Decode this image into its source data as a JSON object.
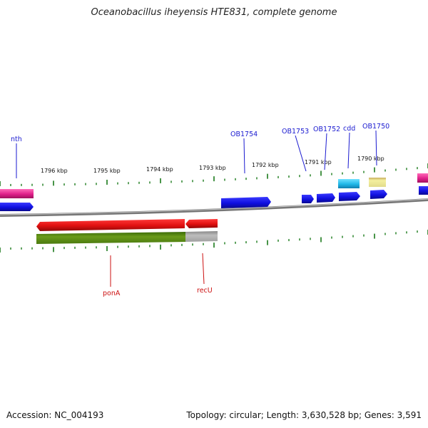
{
  "title": "Oceanobacillus iheyensis HTE831, complete genome",
  "footer": {
    "accession": "Accession: NC_004193",
    "topology": "Topology: circular; Length: 3,630,528 bp; Genes: 3,591"
  },
  "scale_labels": [
    "1796 kbp",
    "1795 kbp",
    "1794 kbp",
    "1793 kbp",
    "1792 kbp",
    "1791 kbp",
    "1790 kbp"
  ],
  "genes_top": [
    {
      "label": "nth",
      "color": "#1a1ad0"
    },
    {
      "label": "OB1754",
      "color": "#1a1ad0"
    },
    {
      "label": "OB1753",
      "color": "#1a1ad0"
    },
    {
      "label": "OB1752",
      "color": "#1a1ad0"
    },
    {
      "label": "cdd",
      "color": "#1a1ad0"
    },
    {
      "label": "OB1750",
      "color": "#1a1ad0"
    }
  ],
  "genes_bottom": [
    {
      "label": "ponA",
      "color": "#cc1010"
    },
    {
      "label": "recU",
      "color": "#cc1010"
    }
  ],
  "colors": {
    "forward_gene": "#1515e6",
    "reverse_gene": "#e01010",
    "pink_gene": "#e0208a",
    "cyan_gene": "#20b8e8",
    "yellow_gene": "#ece79a",
    "olive_gene": "#5a8a10",
    "gray_gene": "#aaaaaa",
    "backbone": "#777777",
    "tick": "#1a7a1a"
  }
}
